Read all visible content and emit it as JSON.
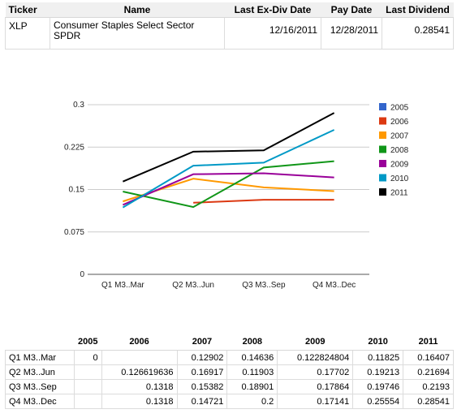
{
  "summary": {
    "headers": [
      "Ticker",
      "Name",
      "Last Ex-Div Date",
      "Pay Date",
      "Last Dividend"
    ],
    "row": {
      "ticker": "XLP",
      "name": "Consumer Staples Select Sector SPDR",
      "ex_div_date": "12/16/2011",
      "pay_date": "12/28/2011",
      "last_dividend": "0.28541"
    }
  },
  "chart_data": {
    "type": "line",
    "title": "",
    "xlabel": "",
    "ylabel": "",
    "categories": [
      "Q1 M3..Mar",
      "Q2 M3..Jun",
      "Q3 M3..Sep",
      "Q4 M3..Dec"
    ],
    "y_ticks": [
      "0",
      "0.075",
      "0.15",
      "0.225",
      "0.3"
    ],
    "ylim": [
      0,
      0.3
    ],
    "grid": true,
    "legend_position": "right",
    "series": [
      {
        "name": "2005",
        "color": "#3366cc",
        "values": [
          0,
          null,
          null,
          null
        ]
      },
      {
        "name": "2006",
        "color": "#dc3912",
        "values": [
          null,
          0.126619636,
          0.1318,
          0.1318
        ]
      },
      {
        "name": "2007",
        "color": "#ff9900",
        "values": [
          0.12902,
          0.16917,
          0.15382,
          0.14721
        ]
      },
      {
        "name": "2008",
        "color": "#109618",
        "values": [
          0.14636,
          0.11903,
          0.18901,
          0.2
        ]
      },
      {
        "name": "2009",
        "color": "#990099",
        "values": [
          0.122824804,
          0.17702,
          0.17864,
          0.17141
        ]
      },
      {
        "name": "2010",
        "color": "#0099c6",
        "values": [
          0.11825,
          0.19213,
          0.19746,
          0.25554
        ]
      },
      {
        "name": "2011",
        "color": "#000000",
        "values": [
          0.16407,
          0.21694,
          0.2193,
          0.28541
        ]
      }
    ]
  },
  "data_table": {
    "headers": [
      "",
      "2005",
      "2006",
      "2007",
      "2008",
      "2009",
      "2010",
      "2011"
    ],
    "rows": [
      [
        "Q1 M3..Mar",
        "0",
        "",
        "0.12902",
        "0.14636",
        "0.122824804",
        "0.11825",
        "0.16407"
      ],
      [
        "Q2 M3..Jun",
        "",
        "0.126619636",
        "0.16917",
        "0.11903",
        "0.17702",
        "0.19213",
        "0.21694"
      ],
      [
        "Q3 M3..Sep",
        "",
        "0.1318",
        "0.15382",
        "0.18901",
        "0.17864",
        "0.19746",
        "0.2193"
      ],
      [
        "Q4 M3..Dec",
        "",
        "0.1318",
        "0.14721",
        "0.2",
        "0.17141",
        "0.25554",
        "0.28541"
      ]
    ]
  }
}
